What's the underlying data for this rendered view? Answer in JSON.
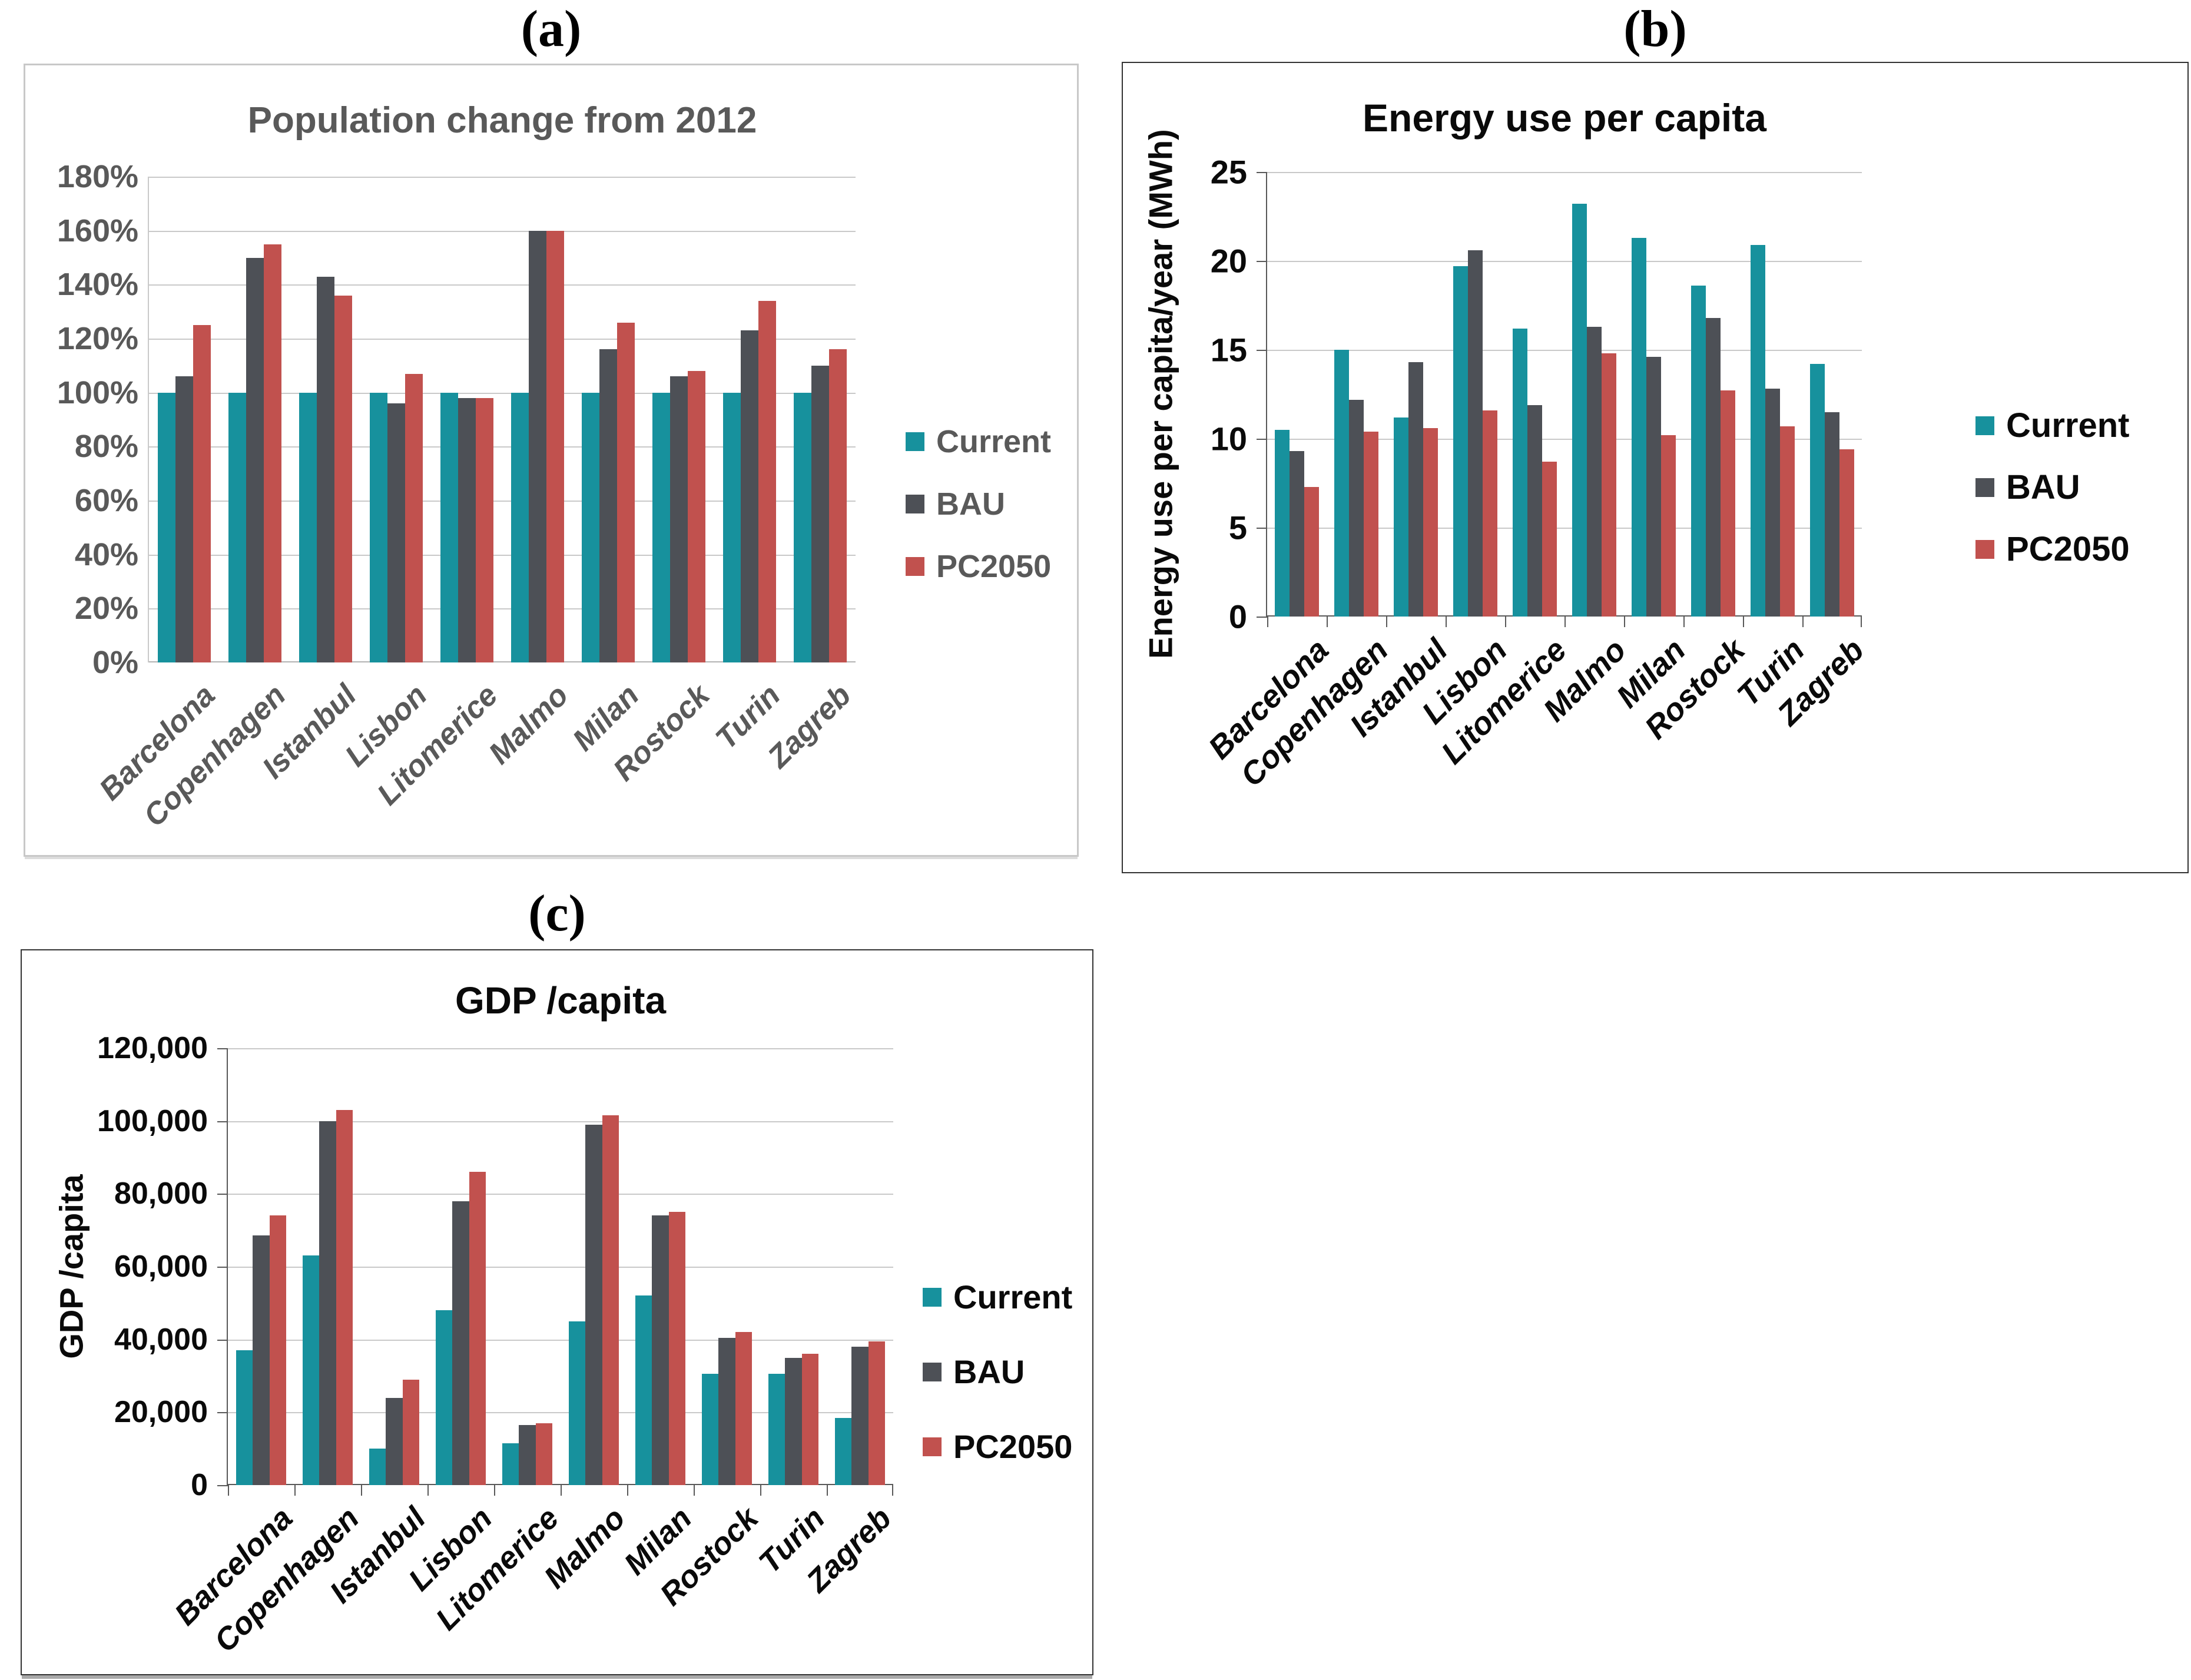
{
  "chart_data": [
    {
      "panel_label": "(a)",
      "type": "bar",
      "title": "Population change from 2012",
      "ylabel": "",
      "categories": [
        "Barcelona",
        "Copenhagen",
        "Istanbul",
        "Lisbon",
        "Litomerice",
        "Malmo",
        "Milan",
        "Rostock",
        "Turin",
        "Zagreb"
      ],
      "series": [
        {
          "name": "Current",
          "color": "#17919d",
          "values": [
            100,
            100,
            100,
            100,
            100,
            100,
            100,
            100,
            100,
            100
          ]
        },
        {
          "name": "BAU",
          "color": "#4d5056",
          "values": [
            106,
            150,
            143,
            96,
            98,
            160,
            116,
            106,
            123,
            110
          ]
        },
        {
          "name": "PC2050",
          "color": "#c1514e",
          "values": [
            125,
            155,
            136,
            107,
            98,
            160,
            126,
            108,
            134,
            116
          ]
        }
      ],
      "ylim": [
        0,
        180
      ],
      "ytick_step": 20,
      "ytick_suffix": "%",
      "thousands": false,
      "tick_marks": false,
      "grid": true,
      "legend_position": "right"
    },
    {
      "panel_label": "(b)",
      "type": "bar",
      "title": "Energy use per capita",
      "ylabel": "Energy use per capita/year (MWh)",
      "categories": [
        "Barcelona",
        "Copenhagen",
        "Istanbul",
        "Lisbon",
        "Litomerice",
        "Malmo",
        "Milan",
        "Rostock",
        "Turin",
        "Zagreb"
      ],
      "series": [
        {
          "name": "Current",
          "color": "#17919d",
          "values": [
            10.5,
            15.0,
            11.2,
            19.7,
            16.2,
            23.2,
            21.3,
            18.6,
            20.9,
            14.2
          ]
        },
        {
          "name": "BAU",
          "color": "#4d5056",
          "values": [
            9.3,
            12.2,
            14.3,
            20.6,
            11.9,
            16.3,
            14.6,
            16.8,
            12.8,
            11.5
          ]
        },
        {
          "name": "PC2050",
          "color": "#c1514e",
          "values": [
            7.3,
            10.4,
            10.6,
            11.6,
            8.7,
            14.8,
            10.2,
            12.7,
            10.7,
            9.4
          ]
        }
      ],
      "ylim": [
        0,
        25
      ],
      "ytick_step": 5,
      "ytick_suffix": "",
      "thousands": false,
      "tick_marks": true,
      "grid": true,
      "legend_position": "right"
    },
    {
      "panel_label": "(c)",
      "type": "bar",
      "title": "GDP /capita",
      "ylabel": "GDP /capita",
      "categories": [
        "Barcelona",
        "Copenhagen",
        "Istanbul",
        "Lisbon",
        "Litomerice",
        "Malmo",
        "Milan",
        "Rostock",
        "Turin",
        "Zagreb"
      ],
      "series": [
        {
          "name": "Current",
          "color": "#17919d",
          "values": [
            37000,
            63000,
            10000,
            48000,
            11500,
            45000,
            52000,
            30500,
            30500,
            18500
          ]
        },
        {
          "name": "BAU",
          "color": "#4d5056",
          "values": [
            68500,
            100000,
            24000,
            78000,
            16500,
            99000,
            74000,
            40500,
            35000,
            38000
          ]
        },
        {
          "name": "PC2050",
          "color": "#c1514e",
          "values": [
            74000,
            103000,
            29000,
            86000,
            17000,
            101500,
            75000,
            42000,
            36000,
            39500
          ]
        }
      ],
      "ylim": [
        0,
        120000
      ],
      "ytick_step": 20000,
      "ytick_suffix": "",
      "thousands": true,
      "tick_marks": true,
      "grid": true,
      "legend_position": "right"
    }
  ]
}
